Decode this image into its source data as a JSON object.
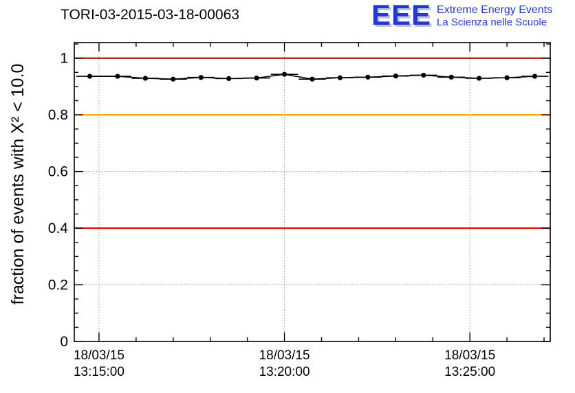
{
  "header": {
    "title": "TORI-03-2015-03-18-00063",
    "logo": {
      "acronym": "EEE",
      "line1": "Extreme Energy Events",
      "line2": "La Scienza nelle Scuole",
      "color": "#2438cc"
    }
  },
  "chart_data": {
    "type": "line",
    "title": "TORI-03-2015-03-18-00063",
    "xlabel": "",
    "ylabel": "fraction of events with X² < 10.0",
    "ylim": [
      0,
      1.055
    ],
    "grid": true,
    "legend_position": "none",
    "x_time_range": [
      "13:14:20",
      "13:27:10"
    ],
    "x_major_ticks": [
      {
        "time": "13:15:00",
        "label_date": "18/03/15",
        "label_time": "13:15:00"
      },
      {
        "time": "13:20:00",
        "label_date": "18/03/15",
        "label_time": "13:20:00"
      },
      {
        "time": "13:25:00",
        "label_date": "18/03/15",
        "label_time": "13:25:00"
      }
    ],
    "x_minor_step_s": 60,
    "y_ticks": [
      0,
      0.2,
      0.4,
      0.6,
      0.8,
      1
    ],
    "y_tick_labels": [
      "0",
      "0.2",
      "0.4",
      "0.6",
      "0.8",
      "1"
    ],
    "y_minor_step": 0.05,
    "reference_lines": [
      {
        "y": 1.0,
        "color": "#aa0000"
      },
      {
        "y": 0.8,
        "color": "#ffaa00"
      },
      {
        "y": 0.4,
        "color": "#ee0000"
      }
    ],
    "series": [
      {
        "name": "fraction of events with chi2 < 10",
        "marker": "circle",
        "color": "#000000",
        "bin_halfwidth_s": 22,
        "points": [
          {
            "t": "13:14:45",
            "y": 0.936
          },
          {
            "t": "13:15:30",
            "y": 0.936
          },
          {
            "t": "13:16:15",
            "y": 0.929
          },
          {
            "t": "13:17:00",
            "y": 0.926
          },
          {
            "t": "13:17:45",
            "y": 0.932
          },
          {
            "t": "13:18:30",
            "y": 0.928
          },
          {
            "t": "13:19:15",
            "y": 0.93
          },
          {
            "t": "13:20:00",
            "y": 0.943
          },
          {
            "t": "13:20:45",
            "y": 0.926
          },
          {
            "t": "13:21:30",
            "y": 0.931
          },
          {
            "t": "13:22:15",
            "y": 0.933
          },
          {
            "t": "13:23:00",
            "y": 0.937
          },
          {
            "t": "13:23:45",
            "y": 0.94
          },
          {
            "t": "13:24:30",
            "y": 0.933
          },
          {
            "t": "13:25:15",
            "y": 0.929
          },
          {
            "t": "13:26:00",
            "y": 0.931
          },
          {
            "t": "13:26:45",
            "y": 0.936
          }
        ]
      }
    ]
  }
}
